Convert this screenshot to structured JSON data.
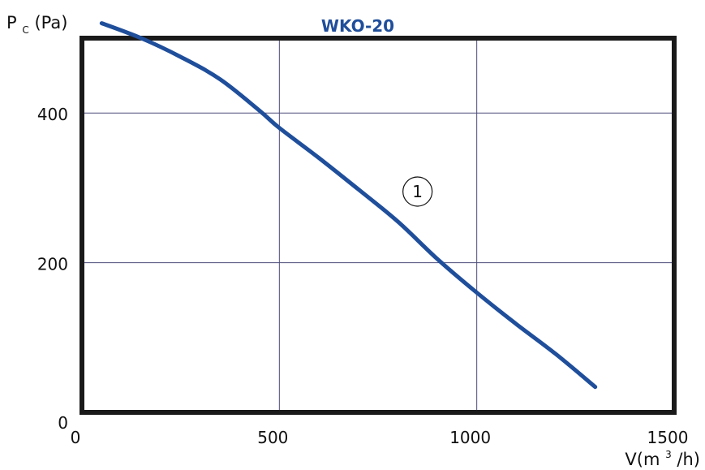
{
  "chart_data": {
    "type": "line",
    "title": "WKO-20",
    "ylabel": {
      "main": "P",
      "sub": "C",
      "rest": "(Pa)"
    },
    "xlabel": {
      "main": "V(m",
      "sup": "3",
      "rest": "/h)"
    },
    "xlim": [
      0,
      1500
    ],
    "ylim": [
      0,
      500
    ],
    "x_ticks": [
      0,
      500,
      1000,
      1500
    ],
    "x_tick_labels": [
      "0",
      "500",
      "1000",
      "1500"
    ],
    "y_ticks": [
      0,
      200,
      400
    ],
    "y_tick_labels": [
      "0",
      "200",
      "400"
    ],
    "grid": true,
    "series": [
      {
        "label": "1",
        "label_at": {
          "x": 850,
          "y": 295
        },
        "x": [
          50,
          150,
          250,
          350,
          450,
          500,
          600,
          700,
          800,
          900,
          1000,
          1100,
          1200,
          1300
        ],
        "y": [
          520,
          500,
          475,
          445,
          403,
          380,
          340,
          298,
          255,
          205,
          160,
          118,
          78,
          34
        ]
      }
    ],
    "colors": {
      "line": "#1f4e9b",
      "title": "#1f4e9b",
      "grid": "#4b4b7a",
      "frame": "#1a1a1a"
    }
  }
}
